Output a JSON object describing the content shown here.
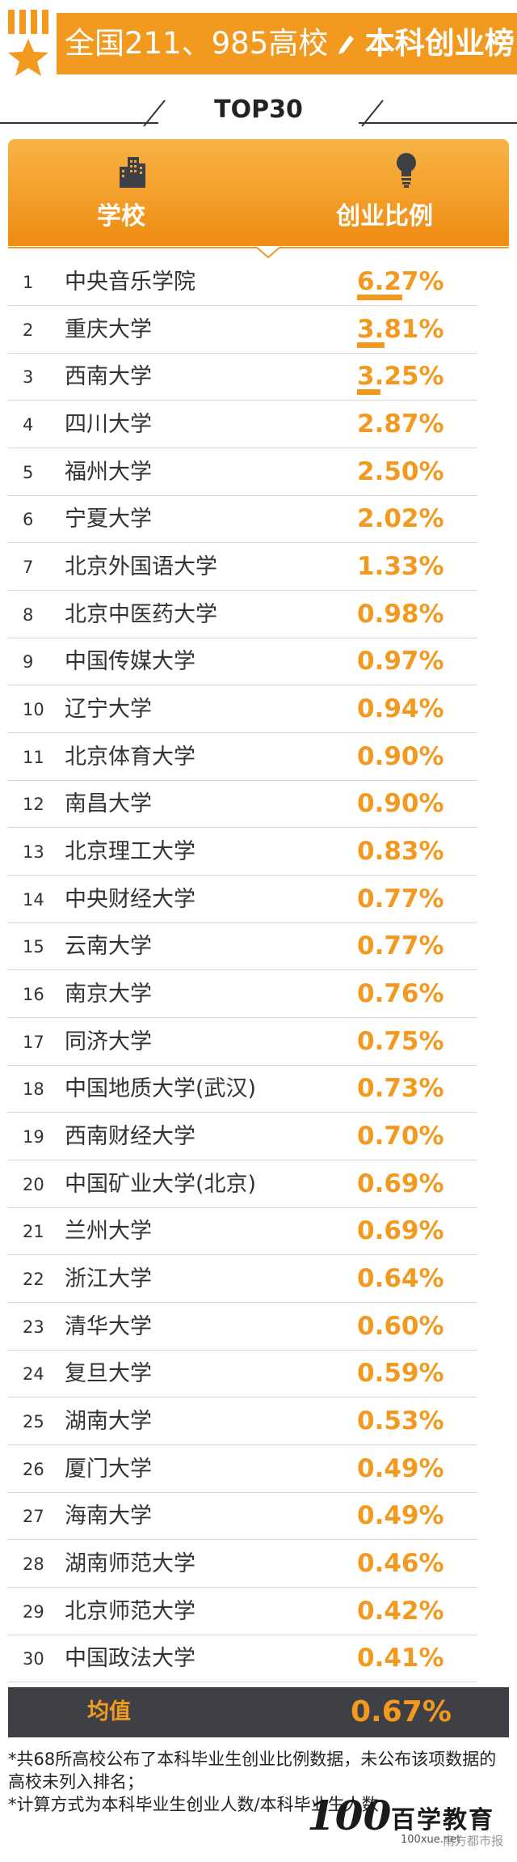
{
  "header": {
    "title_part1": "全国211、985高校",
    "title_part2": "本科创业榜",
    "subtitle": "TOP30"
  },
  "table": {
    "col_school": "学校",
    "col_ratio": "创业比例"
  },
  "chart_data": {
    "type": "table",
    "columns": [
      "学校",
      "创业比例"
    ],
    "rows": [
      {
        "rank": "1",
        "school": "中央音乐学院",
        "ratio": "6.27%",
        "value": 6.27
      },
      {
        "rank": "2",
        "school": "重庆大学",
        "ratio": "3.81%",
        "value": 3.81
      },
      {
        "rank": "3",
        "school": "西南大学",
        "ratio": "3.25%",
        "value": 3.25
      },
      {
        "rank": "4",
        "school": "四川大学",
        "ratio": "2.87%",
        "value": 2.87
      },
      {
        "rank": "5",
        "school": "福州大学",
        "ratio": "2.50%",
        "value": 2.5
      },
      {
        "rank": "6",
        "school": "宁夏大学",
        "ratio": "2.02%",
        "value": 2.02
      },
      {
        "rank": "7",
        "school": "北京外国语大学",
        "ratio": "1.33%",
        "value": 1.33
      },
      {
        "rank": "8",
        "school": "北京中医药大学",
        "ratio": "0.98%",
        "value": 0.98
      },
      {
        "rank": "9",
        "school": "中国传媒大学",
        "ratio": "0.97%",
        "value": 0.97
      },
      {
        "rank": "10",
        "school": "辽宁大学",
        "ratio": "0.94%",
        "value": 0.94
      },
      {
        "rank": "11",
        "school": "北京体育大学",
        "ratio": "0.90%",
        "value": 0.9
      },
      {
        "rank": "12",
        "school": "南昌大学",
        "ratio": "0.90%",
        "value": 0.9
      },
      {
        "rank": "13",
        "school": "北京理工大学",
        "ratio": "0.83%",
        "value": 0.83
      },
      {
        "rank": "14",
        "school": "中央财经大学",
        "ratio": "0.77%",
        "value": 0.77
      },
      {
        "rank": "15",
        "school": "云南大学",
        "ratio": "0.77%",
        "value": 0.77
      },
      {
        "rank": "16",
        "school": "南京大学",
        "ratio": "0.76%",
        "value": 0.76
      },
      {
        "rank": "17",
        "school": "同济大学",
        "ratio": "0.75%",
        "value": 0.75
      },
      {
        "rank": "18",
        "school": "中国地质大学(武汉)",
        "ratio": "0.73%",
        "value": 0.73
      },
      {
        "rank": "19",
        "school": "西南财经大学",
        "ratio": "0.70%",
        "value": 0.7
      },
      {
        "rank": "20",
        "school": "中国矿业大学(北京)",
        "ratio": "0.69%",
        "value": 0.69
      },
      {
        "rank": "21",
        "school": "兰州大学",
        "ratio": "0.69%",
        "value": 0.69
      },
      {
        "rank": "22",
        "school": "浙江大学",
        "ratio": "0.64%",
        "value": 0.64
      },
      {
        "rank": "23",
        "school": "清华大学",
        "ratio": "0.60%",
        "value": 0.6
      },
      {
        "rank": "24",
        "school": "复旦大学",
        "ratio": "0.59%",
        "value": 0.59
      },
      {
        "rank": "25",
        "school": "湖南大学",
        "ratio": "0.53%",
        "value": 0.53
      },
      {
        "rank": "26",
        "school": "厦门大学",
        "ratio": "0.49%",
        "value": 0.49
      },
      {
        "rank": "27",
        "school": "海南大学",
        "ratio": "0.49%",
        "value": 0.49
      },
      {
        "rank": "28",
        "school": "湖南师范大学",
        "ratio": "0.46%",
        "value": 0.46
      },
      {
        "rank": "29",
        "school": "北京师范大学",
        "ratio": "0.42%",
        "value": 0.42
      },
      {
        "rank": "30",
        "school": "中国政法大学",
        "ratio": "0.41%",
        "value": 0.41
      }
    ],
    "bar_max": 6.27
  },
  "average": {
    "label": "均值",
    "value": "0.67%"
  },
  "notes": [
    "*共68所高校公布了本科毕业生创业比例数据，未公布该项数据的高校未列入排名；",
    "*计算方式为本科毕业生创业人数/本科毕业生人数"
  ],
  "watermark": {
    "logo": "100",
    "brand": "百学教育",
    "url": "100xue.net",
    "newspaper": "南方都市报"
  },
  "colors": {
    "accent": "#f29a1f",
    "dark_bar": "#3f4046"
  },
  "icons": {
    "banner": "crown-star-icon",
    "school": "buildings-icon",
    "ratio": "lightbulb-icon"
  }
}
